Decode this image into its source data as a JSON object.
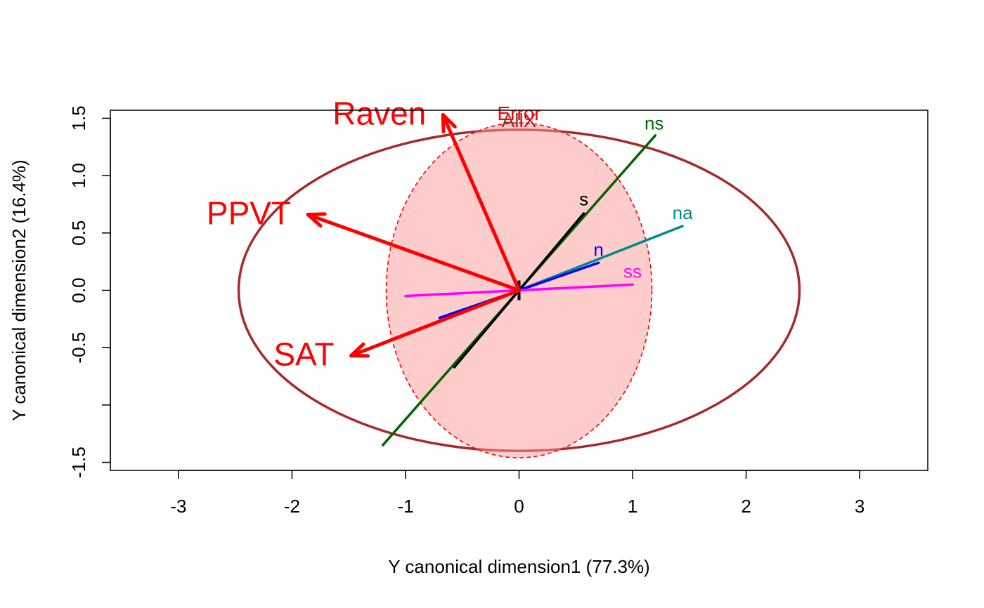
{
  "chart_data": {
    "type": "biplot",
    "title": "",
    "xlabel": "Y canonical dimension1 (77.3%)",
    "ylabel": "Y canonical dimension2 (16.4%)",
    "xlim": [
      -3.6,
      3.6
    ],
    "ylim": [
      -1.57,
      1.57
    ],
    "xticks": [
      {
        "value": -3,
        "label": "-3"
      },
      {
        "value": -2,
        "label": "-2"
      },
      {
        "value": -1,
        "label": "-1"
      },
      {
        "value": 0,
        "label": "0"
      },
      {
        "value": 1,
        "label": "1"
      },
      {
        "value": 2,
        "label": "2"
      },
      {
        "value": 3,
        "label": "3"
      }
    ],
    "yticks": [
      {
        "value": -1.5,
        "label": "-1.5"
      },
      {
        "value": -1.0,
        "label": ""
      },
      {
        "value": -0.5,
        "label": "-0.5"
      },
      {
        "value": 0.0,
        "label": "0.0"
      },
      {
        "value": 0.5,
        "label": "0.5"
      },
      {
        "value": 1.0,
        "label": "1.0"
      },
      {
        "value": 1.5,
        "label": "1.5"
      }
    ],
    "grid": false,
    "legend": "none",
    "ellipses": [
      {
        "name": "AllX",
        "label": "AllX",
        "center": [
          0,
          0
        ],
        "radii": [
          2.47,
          1.4
        ],
        "color": "#a52a2a",
        "fill": "none",
        "dashed": false
      },
      {
        "name": "Error",
        "label": "Error",
        "center": [
          0,
          0
        ],
        "radii": [
          1.17,
          1.46
        ],
        "color": "#ff0000",
        "fill": "#ff9999",
        "fill_opacity": 0.5,
        "dashed": true
      }
    ],
    "response_vectors": [
      {
        "name": "Raven",
        "x": -0.67,
        "y": 1.53,
        "color": "#ff0000"
      },
      {
        "name": "PPVT",
        "x": -1.86,
        "y": 0.66,
        "color": "#ff0000"
      },
      {
        "name": "SAT",
        "x": -1.48,
        "y": -0.57,
        "color": "#ff0000"
      }
    ],
    "term_lines": [
      {
        "name": "ns",
        "end": [
          1.2,
          1.35
        ],
        "start": [
          -1.2,
          -1.35
        ],
        "color": "#006400",
        "label_pos": [
          1.19,
          1.45
        ]
      },
      {
        "name": "na",
        "end": [
          1.44,
          0.56
        ],
        "start": [
          0,
          0
        ],
        "color": "#008b8b",
        "label_pos": [
          1.44,
          0.67
        ]
      },
      {
        "name": "s",
        "end": [
          0.57,
          0.67
        ],
        "start": [
          -0.57,
          -0.67
        ],
        "color": "#000000",
        "label_pos": [
          0.57,
          0.79
        ]
      },
      {
        "name": "n",
        "end": [
          0.7,
          0.24
        ],
        "start": [
          -0.7,
          -0.24
        ],
        "color": "#0000ff",
        "label_pos": [
          0.7,
          0.35
        ]
      },
      {
        "name": "ss",
        "end": [
          1.0,
          0.05
        ],
        "start": [
          -1.0,
          -0.05
        ],
        "color": "#ff00ff",
        "label_pos": [
          1.0,
          0.16
        ]
      }
    ]
  }
}
